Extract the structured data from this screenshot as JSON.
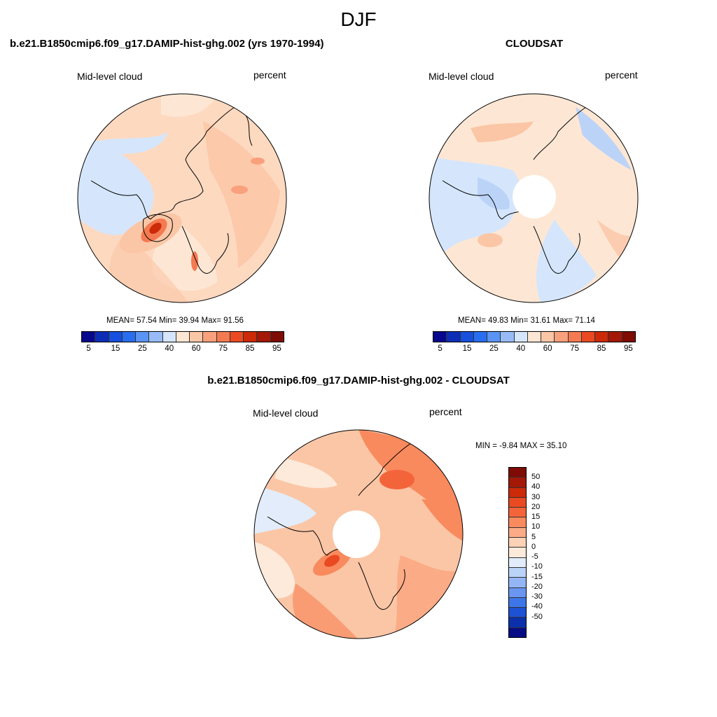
{
  "figure": {
    "title": "DJF"
  },
  "panels": {
    "model": {
      "title": "b.e21.B1850cmip6.f09_g17.DAMIP-hist-ghg.002 (yrs 1970-1994)",
      "variable": "Mid-level cloud",
      "units": "percent",
      "stats": "MEAN=  57.54  Min=  39.94  Max=  91.56"
    },
    "obs": {
      "title": "CLOUDSAT",
      "variable": "Mid-level cloud",
      "units": "percent",
      "stats": "MEAN=  49.83  Min=  31.61  Max=  71.14"
    },
    "diff": {
      "title": "b.e21.B1850cmip6.f09_g17.DAMIP-hist-ghg.002 - CLOUDSAT",
      "variable": "Mid-level cloud",
      "units": "percent",
      "stats": "MIN =  -9.84 MAX =  35.10"
    }
  },
  "colorbars": {
    "field": {
      "colors": [
        "#08088c",
        "#0c2eb4",
        "#1650dc",
        "#2a6ef0",
        "#5a94f4",
        "#98bbf8",
        "#d5e6fc",
        "#fde7d4",
        "#fbc6a6",
        "#f9a07c",
        "#f47a52",
        "#ea4a22",
        "#cc2a08",
        "#a31806",
        "#7e0c04"
      ],
      "tick_labels": [
        "5",
        "15",
        "25",
        "40",
        "60",
        "75",
        "85",
        "95"
      ]
    },
    "diff": {
      "colors": [
        "#7e0c04",
        "#a31806",
        "#cc2a08",
        "#ea4a22",
        "#f4643a",
        "#f98a5e",
        "#fbab86",
        "#fdd2b6",
        "#fdeadb",
        "#e2ecfa",
        "#bcd3f8",
        "#94b6f6",
        "#6a96f2",
        "#3e76ea",
        "#1e52d4",
        "#0c30ac",
        "#060c84"
      ],
      "tick_labels": [
        "50",
        "40",
        "30",
        "20",
        "15",
        "10",
        "5",
        "0",
        "-5",
        "-10",
        "-15",
        "-20",
        "-30",
        "-40",
        "-50"
      ]
    }
  }
}
